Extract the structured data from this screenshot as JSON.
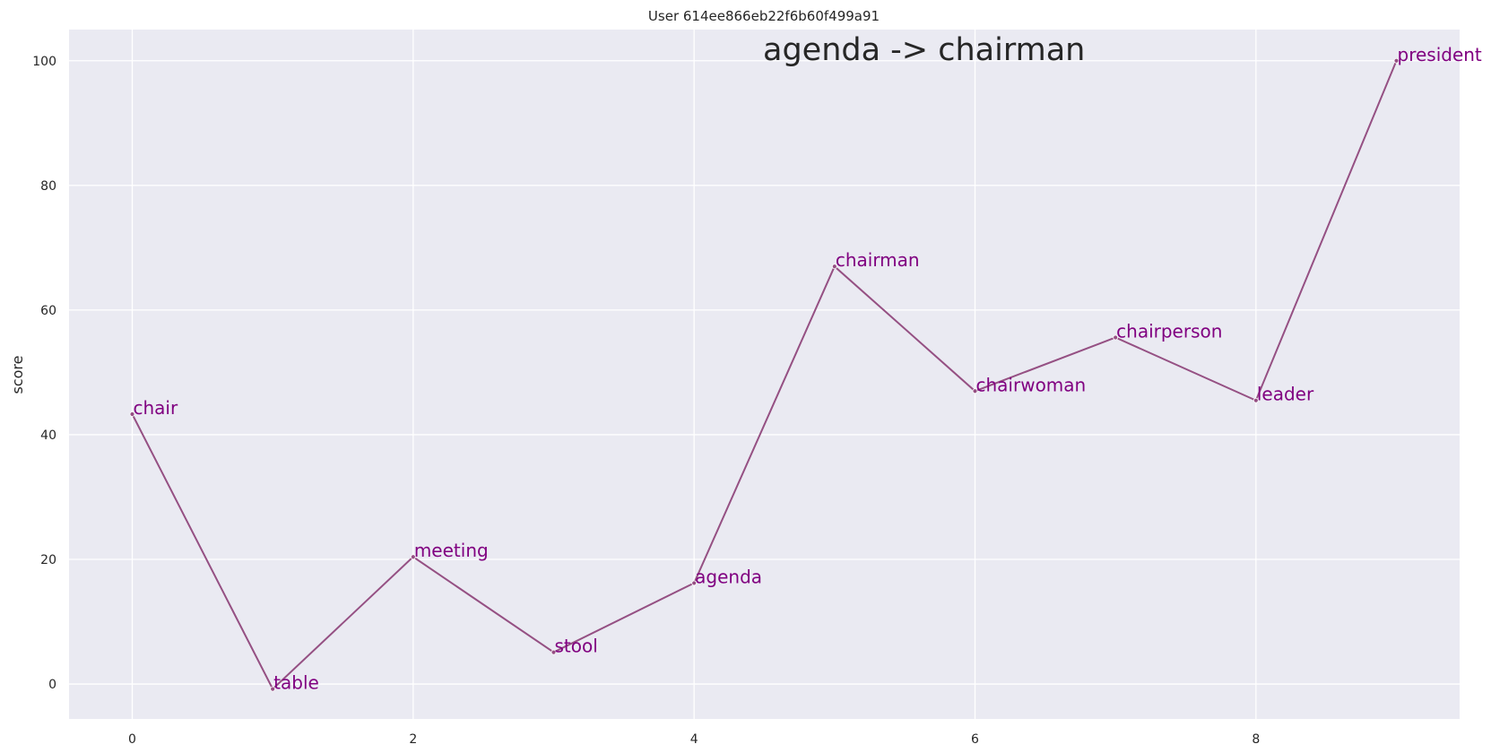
{
  "chart_data": {
    "type": "line",
    "title": "User 614ee866eb22f6b60f499a91",
    "annotation": "agenda -> chairman",
    "xlabel": "",
    "ylabel": "score",
    "x": [
      0,
      1,
      2,
      3,
      4,
      5,
      6,
      7,
      8,
      9
    ],
    "series": [
      {
        "values": [
          43.3,
          -0.8,
          20.4,
          5.1,
          16.2,
          67.0,
          47.0,
          55.6,
          45.5,
          100.0
        ],
        "point_labels": [
          "chair",
          "table",
          "meeting",
          "stool",
          "agenda",
          "chairman",
          "chairwoman",
          "chairperson",
          "leader",
          "president"
        ]
      }
    ],
    "xlim": [
      -0.45,
      9.45
    ],
    "ylim": [
      -5.6,
      105
    ],
    "xticks": [
      0,
      2,
      4,
      6,
      8
    ],
    "yticks": [
      0,
      20,
      40,
      60,
      80,
      100
    ],
    "grid": true,
    "legend": "none",
    "colors": {
      "background": "#eaeaf2",
      "grid": "#ffffff",
      "line": "#955083",
      "labels": "#800080"
    }
  }
}
